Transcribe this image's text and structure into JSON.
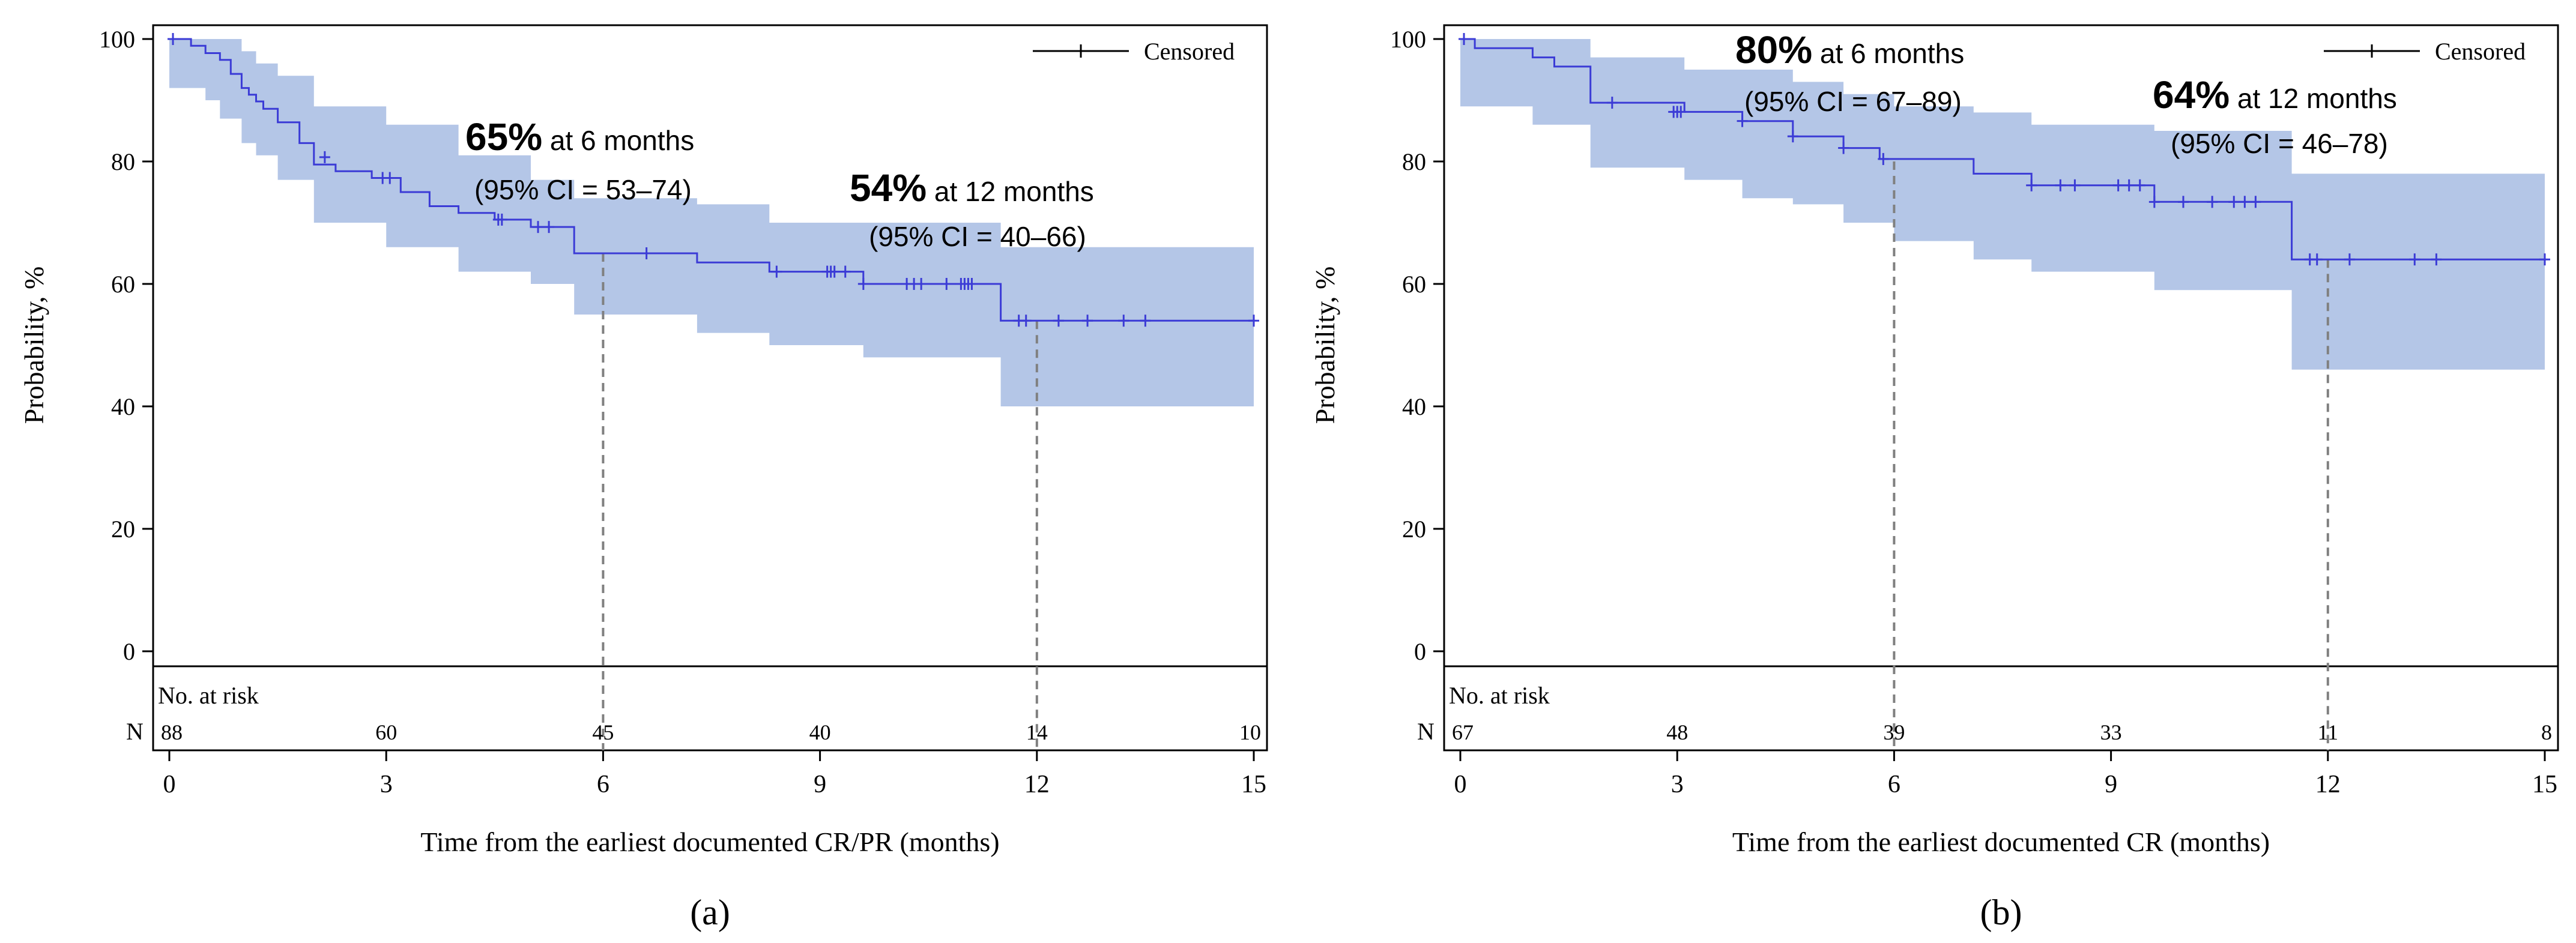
{
  "colors": {
    "band": "#b4c6e7",
    "line": "#3b3bd6",
    "axis": "#000000",
    "ref": "#808080"
  },
  "chart_data": [
    {
      "type": "line",
      "panel_label": "(a)",
      "xlabel": "Time from the earliest documented CR/PR (months)",
      "ylabel": "Probability, %",
      "xlim": [
        0,
        15
      ],
      "ylim": [
        0,
        100
      ],
      "xticks": [
        "0",
        "3",
        "6",
        "9",
        "12",
        "15"
      ],
      "yticks": [
        "0",
        "20",
        "40",
        "60",
        "80",
        "100"
      ],
      "legend": {
        "label": "Censored",
        "placement": "top-right"
      },
      "risk_table": {
        "title": "No. at risk",
        "row_label": "N",
        "times": [
          0,
          3,
          6,
          9,
          12,
          15
        ],
        "counts": [
          "88",
          "60",
          "45",
          "40",
          "14",
          "10"
        ]
      },
      "annotations": [
        {
          "pct": "65%",
          "text": " at 6 months",
          "ci": "(95% CI = 53–74)",
          "time": 6,
          "value": 65
        },
        {
          "pct": "54%",
          "text": " at 12 months",
          "ci": "(95% CI = 40–66)",
          "time": 12,
          "value": 54
        }
      ],
      "reference_lines": [
        6,
        12
      ],
      "survival": {
        "x": [
          0,
          0.3,
          0.5,
          0.7,
          0.85,
          1.0,
          1.1,
          1.2,
          1.3,
          1.5,
          1.8,
          2.0,
          2.3,
          2.8,
          3.2,
          3.6,
          4.0,
          4.5,
          5.0,
          5.6,
          7.3,
          8.3,
          9.6,
          11.5,
          15
        ],
        "y": [
          100,
          98.9,
          97.7,
          96.6,
          94.3,
          92.0,
          90.9,
          89.8,
          88.6,
          86.4,
          83.0,
          79.5,
          78.4,
          77.3,
          75.0,
          72.7,
          71.6,
          70.5,
          69.3,
          65.0,
          63.5,
          62.0,
          60.0,
          54.0,
          54.0
        ]
      },
      "ci_band": {
        "x": [
          0,
          0.5,
          0.7,
          1.0,
          1.2,
          1.5,
          2.0,
          3.0,
          4.0,
          5.0,
          5.6,
          7.3,
          8.3,
          9.6,
          11.5,
          15
        ],
        "lower": [
          92,
          90,
          87,
          83,
          81,
          77,
          70,
          66,
          62,
          60,
          55,
          52,
          50,
          48,
          40,
          40
        ],
        "upper": [
          100,
          100,
          100,
          98,
          96,
          94,
          89,
          86,
          81,
          77,
          74,
          73,
          70,
          70,
          66,
          66
        ]
      },
      "censored": {
        "x": [
          0.05,
          2.15,
          2.95,
          3.05,
          4.55,
          4.6,
          5.1,
          5.25,
          6.6,
          8.4,
          9.1,
          9.15,
          9.2,
          9.35,
          9.6,
          10.2,
          10.3,
          10.4,
          10.75,
          10.95,
          11.0,
          11.05,
          11.1,
          11.75,
          11.85,
          12.3,
          12.7,
          13.2,
          13.5,
          15.0
        ],
        "y": [
          100,
          80.7,
          77.3,
          77.3,
          70.5,
          70.5,
          69.3,
          69.3,
          65.0,
          62.0,
          62.0,
          62.0,
          62.0,
          62.0,
          60.0,
          60.0,
          60.0,
          60.0,
          60.0,
          60.0,
          60.0,
          60.0,
          60.0,
          54.0,
          54.0,
          54.0,
          54.0,
          54.0,
          54.0,
          54.0
        ]
      }
    },
    {
      "type": "line",
      "panel_label": "(b)",
      "xlabel": "Time from the earliest documented CR (months)",
      "ylabel": "Probability, %",
      "xlim": [
        0,
        15
      ],
      "ylim": [
        0,
        100
      ],
      "xticks": [
        "0",
        "3",
        "6",
        "9",
        "12",
        "15"
      ],
      "yticks": [
        "0",
        "20",
        "40",
        "60",
        "80",
        "100"
      ],
      "legend": {
        "label": "Censored",
        "placement": "top-right"
      },
      "risk_table": {
        "title": "No. at risk",
        "row_label": "N",
        "times": [
          0,
          3,
          6,
          9,
          12,
          15
        ],
        "counts": [
          "67",
          "48",
          "39",
          "33",
          "11",
          "8"
        ]
      },
      "annotations": [
        {
          "pct": "80%",
          "text": " at 6 months",
          "ci": "(95% CI = 67–89)",
          "time": 6,
          "value": 80
        },
        {
          "pct": "64%",
          "text": " at 12 months",
          "ci": "(95% CI = 46–78)",
          "time": 12,
          "value": 64
        }
      ],
      "reference_lines": [
        6,
        12
      ],
      "survival": {
        "x": [
          0,
          0.2,
          1.0,
          1.3,
          1.8,
          3.1,
          3.9,
          4.6,
          5.3,
          5.8,
          7.1,
          7.9,
          9.6,
          11.5,
          15
        ],
        "y": [
          100,
          98.5,
          97.0,
          95.5,
          89.6,
          88.1,
          86.6,
          84.1,
          82.2,
          80.4,
          78.0,
          76.1,
          73.4,
          64.0,
          64.0
        ]
      },
      "ci_band": {
        "x": [
          0,
          1.0,
          1.8,
          3.1,
          3.9,
          4.6,
          5.3,
          6.0,
          7.1,
          7.9,
          9.6,
          11.5,
          15
        ],
        "lower": [
          89,
          86,
          79,
          77,
          74,
          73,
          70,
          67,
          64,
          62,
          59,
          46,
          46
        ],
        "upper": [
          100,
          100,
          97,
          95,
          95,
          93,
          91,
          89,
          88,
          86,
          85,
          78,
          78
        ]
      },
      "censored": {
        "x": [
          0.05,
          2.1,
          2.95,
          3.0,
          3.05,
          3.9,
          4.6,
          5.3,
          5.85,
          7.9,
          8.3,
          8.5,
          9.1,
          9.25,
          9.4,
          9.6,
          10.0,
          10.4,
          10.7,
          10.85,
          11.0,
          11.75,
          11.85,
          12.3,
          13.2,
          13.5,
          15.0
        ],
        "y": [
          100,
          89.6,
          88.1,
          88.1,
          88.1,
          86.6,
          84.1,
          82.2,
          80.4,
          76.1,
          76.1,
          76.1,
          76.1,
          76.1,
          76.1,
          73.4,
          73.4,
          73.4,
          73.4,
          73.4,
          73.4,
          64.0,
          64.0,
          64.0,
          64.0,
          64.0,
          64.0
        ]
      }
    }
  ]
}
